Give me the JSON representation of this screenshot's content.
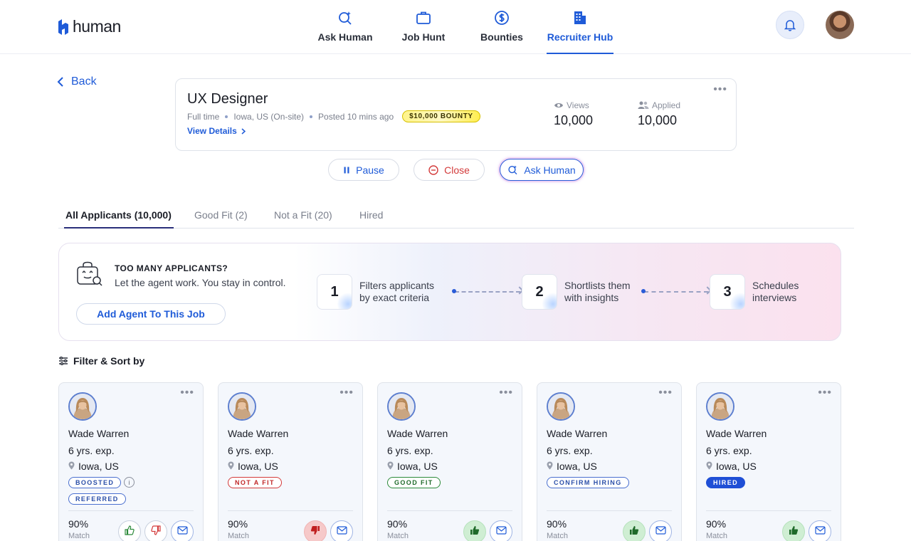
{
  "header": {
    "logo_text": "human",
    "nav": [
      {
        "label": "Ask Human",
        "icon": "sparkle-search-icon",
        "active": false
      },
      {
        "label": "Job Hunt",
        "icon": "briefcase-icon",
        "active": false
      },
      {
        "label": "Bounties",
        "icon": "dollar-circle-icon",
        "active": false
      },
      {
        "label": "Recruiter Hub",
        "icon": "building-icon",
        "active": true
      }
    ],
    "accent_color": "#1f5bd8"
  },
  "back_label": "Back",
  "job": {
    "title": "UX Designer",
    "employment_type": "Full time",
    "location": "Iowa, US (On-site)",
    "posted": "Posted 10 mins ago",
    "bounty": "$10,000 BOUNTY",
    "view_details": "View Details",
    "views_label": "Views",
    "views_value": "10,000",
    "applied_label": "Applied",
    "applied_value": "10,000"
  },
  "actions": {
    "pause": "Pause",
    "close": "Close",
    "ask_human": "Ask Human"
  },
  "tabs": [
    {
      "label": "All Applicants (10,000)",
      "active": true
    },
    {
      "label": "Good Fit (2)",
      "active": false
    },
    {
      "label": "Not a Fit (20)",
      "active": false
    },
    {
      "label": "Hired",
      "active": false
    }
  ],
  "agent_banner": {
    "heading": "TOO MANY APPLICANTS?",
    "subtext": "Let the agent work. You stay in control.",
    "button": "Add Agent To This Job",
    "steps": [
      {
        "number": "1",
        "line1": "Filters applicants",
        "line2": "by exact criteria"
      },
      {
        "number": "2",
        "line1": "Shortlists them",
        "line2": "with insights"
      },
      {
        "number": "3",
        "line1": "Schedules",
        "line2": "interviews"
      }
    ]
  },
  "filter_label": "Filter & Sort by",
  "applicants": [
    {
      "name": "Wade Warren",
      "experience": "6 yrs. exp.",
      "location": "Iowa, US",
      "badges": [
        "BOOSTED",
        "REFERRED"
      ],
      "match_value": "90%",
      "match_label": "Match",
      "status": "undecided"
    },
    {
      "name": "Wade Warren",
      "experience": "6 yrs. exp.",
      "location": "Iowa, US",
      "badges": [
        "NOT A FIT"
      ],
      "match_value": "90%",
      "match_label": "Match",
      "status": "not-fit"
    },
    {
      "name": "Wade Warren",
      "experience": "6 yrs. exp.",
      "location": "Iowa, US",
      "badges": [
        "GOOD FIT"
      ],
      "match_value": "90%",
      "match_label": "Match",
      "status": "good-fit"
    },
    {
      "name": "Wade Warren",
      "experience": "6 yrs. exp.",
      "location": "Iowa, US",
      "badges": [
        "CONFIRM HIRING"
      ],
      "match_value": "90%",
      "match_label": "Match",
      "status": "confirm"
    },
    {
      "name": "Wade Warren",
      "experience": "6 yrs. exp.",
      "location": "Iowa, US",
      "badges": [
        "HIRED"
      ],
      "match_value": "90%",
      "match_label": "Match",
      "status": "hired"
    }
  ]
}
